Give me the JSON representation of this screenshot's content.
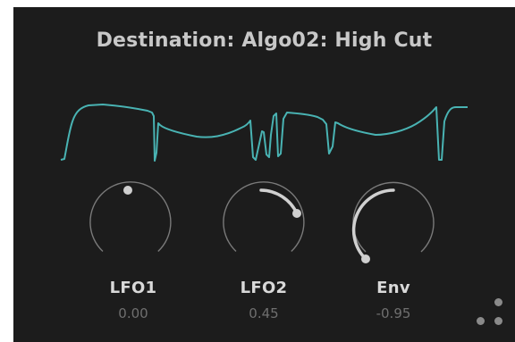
{
  "destination": {
    "title": "Destination: Algo02: High Cut"
  },
  "waveform": {
    "color": "#49b3b3"
  },
  "knobs": [
    {
      "label": "LFO1",
      "value": "0.00",
      "amount": 0.0
    },
    {
      "label": "LFO2",
      "value": "0.45",
      "amount": 0.45
    },
    {
      "label": "Env",
      "value": "-0.95",
      "amount": -0.95
    }
  ],
  "colors": {
    "panel_bg": "#1c1c1c",
    "knob_track": "#7a7a7a",
    "knob_value_arc": "#d0d0d0"
  },
  "corner_icon": "resize-grip-icon"
}
